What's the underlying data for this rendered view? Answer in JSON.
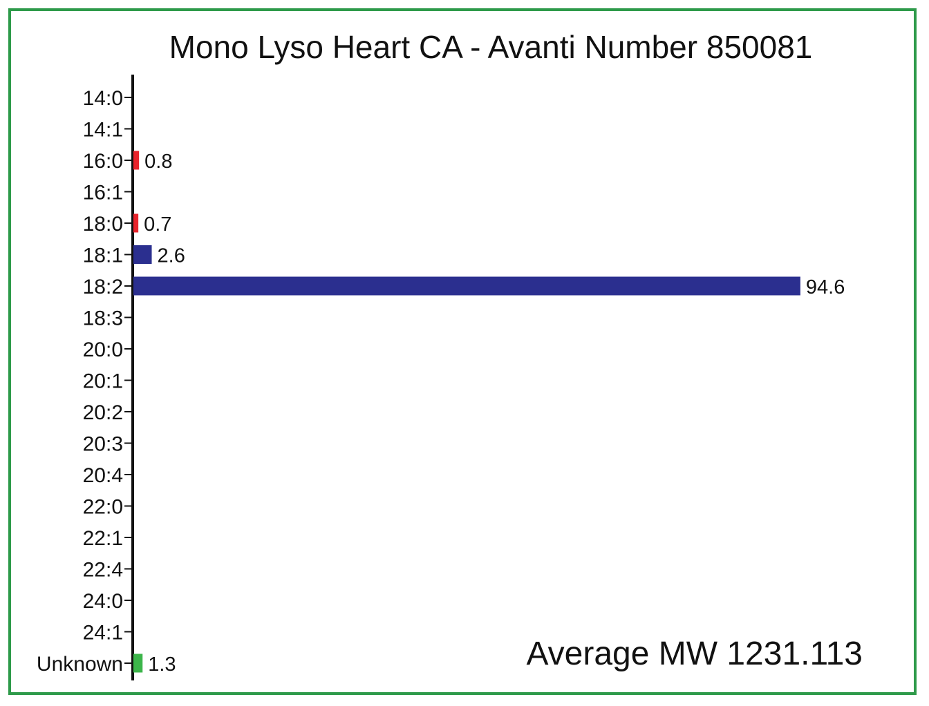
{
  "chart_data": {
    "type": "bar",
    "orientation": "horizontal",
    "title": "Mono Lyso Heart CA - Avanti Number 850081",
    "categories": [
      "14:0",
      "14:1",
      "16:0",
      "16:1",
      "18:0",
      "18:1",
      "18:2",
      "18:3",
      "20:0",
      "20:1",
      "20:2",
      "20:3",
      "20:4",
      "22:0",
      "22:1",
      "22:4",
      "24:0",
      "24:1",
      "Unknown"
    ],
    "values": [
      null,
      null,
      0.8,
      null,
      0.7,
      2.6,
      94.6,
      null,
      null,
      null,
      null,
      null,
      null,
      null,
      null,
      null,
      null,
      null,
      1.3
    ],
    "value_labels": [
      null,
      null,
      "0.8",
      null,
      "0.7",
      "2.6",
      "94.6",
      null,
      null,
      null,
      null,
      null,
      null,
      null,
      null,
      null,
      null,
      null,
      "1.3"
    ],
    "bar_colors": [
      null,
      null,
      "#e8232b",
      null,
      "#e8232b",
      "#2b2f8f",
      "#2b2f8f",
      null,
      null,
      null,
      null,
      null,
      null,
      null,
      null,
      null,
      null,
      null,
      "#3cb54a"
    ],
    "xlim": [
      0,
      100
    ],
    "xlabel": "",
    "ylabel": "",
    "grid": false,
    "annotation": "Average MW 1231.113"
  },
  "colors": {
    "border": "#2e9a4a",
    "saturated": "#e8232b",
    "unsaturated": "#2b2f8f",
    "unknown": "#3cb54a"
  }
}
